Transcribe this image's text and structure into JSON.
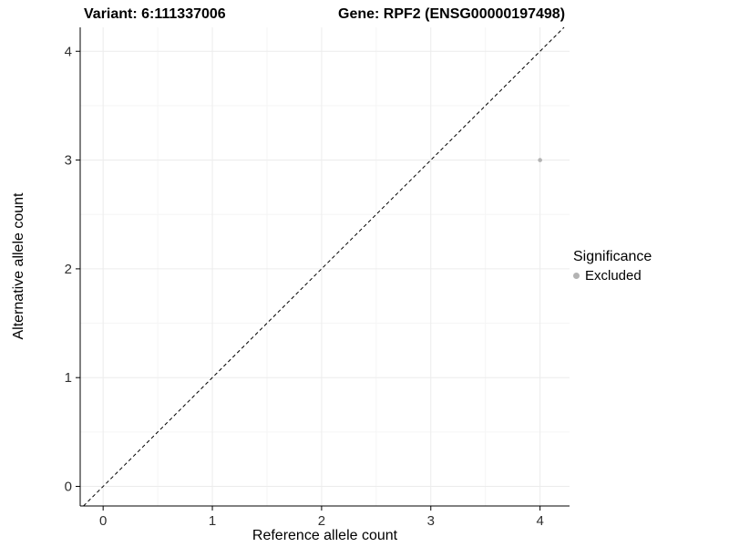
{
  "chart_data": {
    "type": "scatter",
    "title_left": "Variant: 6:111337006",
    "title_right": "Gene: RPF2 (ENSG00000197498)",
    "xlabel": "Reference allele count",
    "ylabel": "Alternative allele count",
    "xlim": [
      -0.21,
      4.27
    ],
    "ylim": [
      -0.18,
      4.22
    ],
    "xticks": [
      0,
      1,
      2,
      3,
      4
    ],
    "yticks": [
      0,
      1,
      2,
      3,
      4
    ],
    "series": [
      {
        "name": "Excluded",
        "color": "#b3b3b3",
        "points": [
          {
            "x": 4,
            "y": 3
          }
        ]
      }
    ],
    "reference_line": {
      "kind": "identity",
      "equation": "y = x",
      "style": "dashed",
      "color": "#000000"
    },
    "legend": {
      "title": "Significance",
      "position": "right",
      "items": [
        {
          "label": "Excluded",
          "color": "#b3b3b3"
        }
      ]
    },
    "grid": true,
    "colors": {
      "background": "#ffffff",
      "grid_major": "#ececec",
      "grid_minor": "#f5f5f5",
      "axis": "#000000",
      "tick_label": "#303030"
    }
  }
}
